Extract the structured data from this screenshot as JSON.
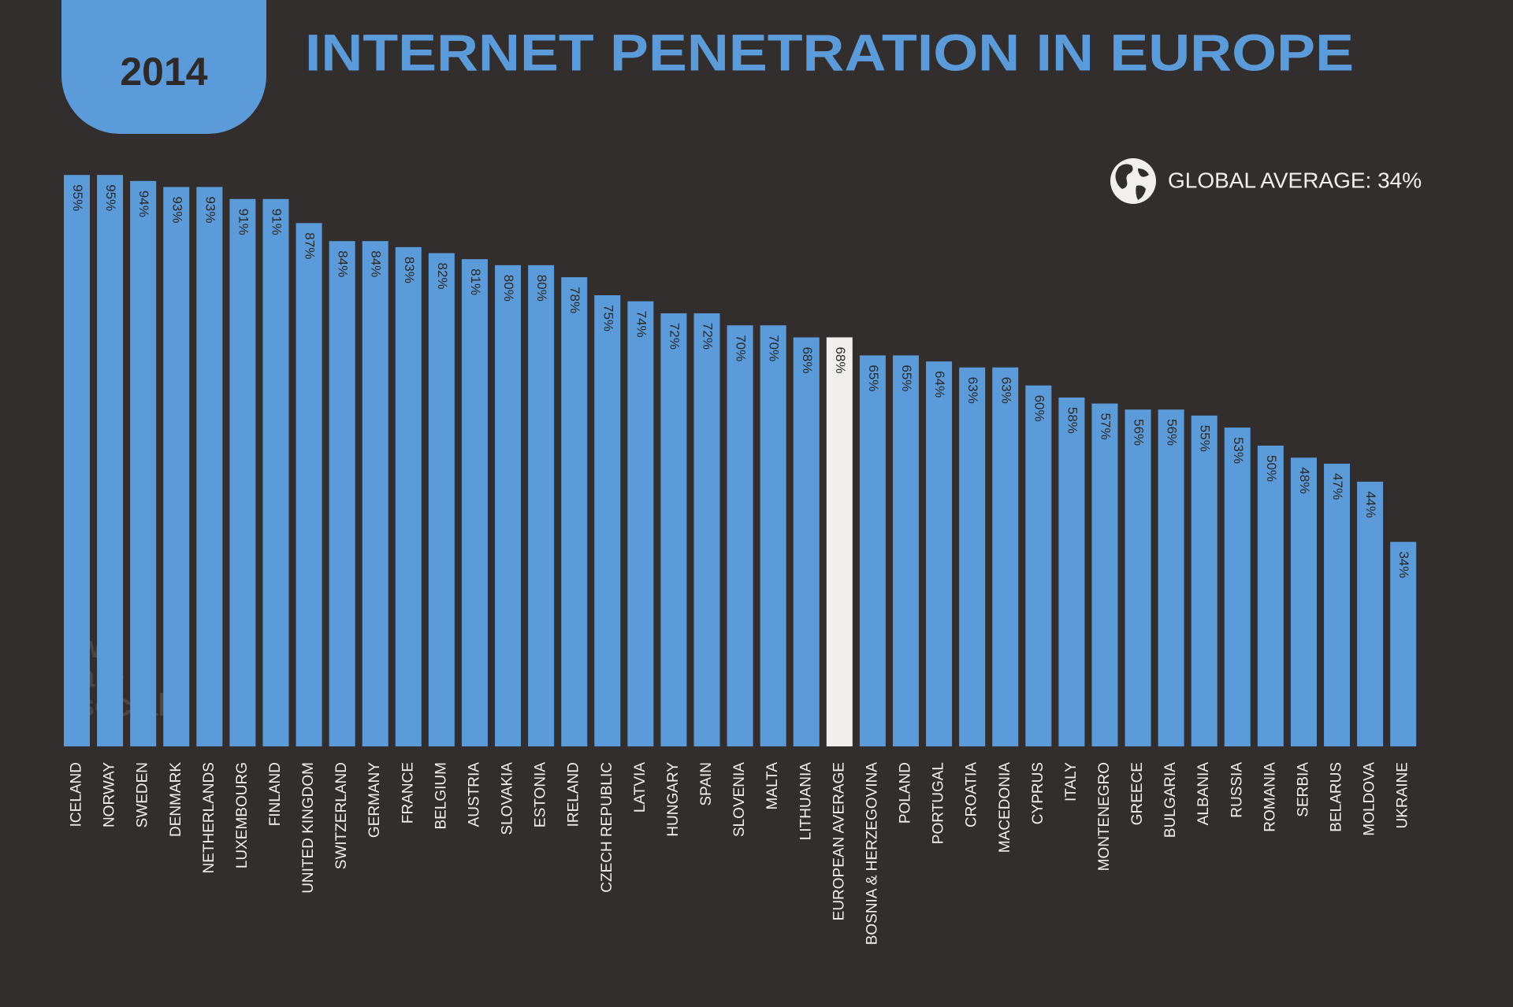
{
  "chart_data": {
    "type": "bar",
    "year": "2014",
    "title": "INTERNET PENETRATION IN EUROPE",
    "annotation": "GLOBAL AVERAGE: 34%",
    "watermark": [
      "we",
      "are",
      "social"
    ],
    "categories": [
      "ICELAND",
      "NORWAY",
      "SWEDEN",
      "DENMARK",
      "NETHERLANDS",
      "LUXEMBOURG",
      "FINLAND",
      "UNITED KINGDOM",
      "SWITZERLAND",
      "GERMANY",
      "FRANCE",
      "BELGIUM",
      "AUSTRIA",
      "SLOVAKIA",
      "ESTONIA",
      "IRELAND",
      "CZECH REPUBLIC",
      "LATVIA",
      "HUNGARY",
      "SPAIN",
      "SLOVENIA",
      "MALTA",
      "LITHUANIA",
      "EUROPEAN AVERAGE",
      "BOSNIA & HERZEGOVINA",
      "POLAND",
      "PORTUGAL",
      "CROATIA",
      "MACEDONIA",
      "CYPRUS",
      "ITALY",
      "MONTENEGRO",
      "GREECE",
      "BULGARIA",
      "ALBANIA",
      "RUSSIA",
      "ROMANIA",
      "SERBIA",
      "BELARUS",
      "MOLDOVA",
      "UKRAINE"
    ],
    "values": [
      95,
      95,
      94,
      93,
      93,
      91,
      91,
      87,
      84,
      84,
      83,
      82,
      81,
      80,
      80,
      78,
      75,
      74,
      72,
      72,
      70,
      70,
      68,
      68,
      65,
      65,
      64,
      63,
      63,
      60,
      58,
      57,
      56,
      56,
      55,
      53,
      50,
      48,
      47,
      44,
      34
    ],
    "value_labels": [
      "95%",
      "95%",
      "94%",
      "93%",
      "93%",
      "91%",
      "91%",
      "87%",
      "84%",
      "84%",
      "83%",
      "82%",
      "81%",
      "80%",
      "80%",
      "78%",
      "75%",
      "74%",
      "72%",
      "72%",
      "70%",
      "70%",
      "68%",
      "68%",
      "65%",
      "65%",
      "64%",
      "63%",
      "63%",
      "60%",
      "58%",
      "57%",
      "56%",
      "56%",
      "55%",
      "53%",
      "50%",
      "48%",
      "47%",
      "44%",
      "34%"
    ],
    "colors": [
      "#5b9bd9",
      "#5b9bd9",
      "#5b9bd9",
      "#5b9bd9",
      "#5b9bd9",
      "#5b9bd9",
      "#5b9bd9",
      "#5b9bd9",
      "#5b9bd9",
      "#5b9bd9",
      "#5b9bd9",
      "#5b9bd9",
      "#5b9bd9",
      "#5b9bd9",
      "#5b9bd9",
      "#5b9bd9",
      "#5b9bd9",
      "#5b9bd9",
      "#5b9bd9",
      "#5b9bd9",
      "#5b9bd9",
      "#5b9bd9",
      "#5b9bd9",
      "#f1efeb",
      "#5b9bd9",
      "#5b9bd9",
      "#5b9bd9",
      "#5b9bd9",
      "#5b9bd9",
      "#5b9bd9",
      "#5b9bd9",
      "#5b9bd9",
      "#5b9bd9",
      "#5b9bd9",
      "#5b9bd9",
      "#5b9bd9",
      "#5b9bd9",
      "#5b9bd9",
      "#5b9bd9",
      "#5b9bd9",
      "#5b9bd9"
    ],
    "ylim": [
      0,
      100
    ]
  }
}
